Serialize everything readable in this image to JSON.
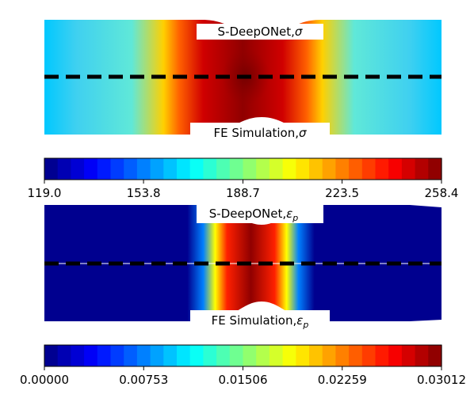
{
  "chart_data": [
    {
      "type": "heatmap",
      "panel": "stress",
      "top_label": "S-DeepONet,σ",
      "bottom_label": "FE Simulation,σ",
      "colormap": "jet",
      "colorbar": {
        "range": [
          119.0,
          258.4
        ],
        "ticks": [
          119.0,
          153.8,
          188.7,
          223.5,
          258.4
        ],
        "tick_labels": [
          "119.0",
          "153.8",
          "188.7",
          "223.5",
          "258.4"
        ]
      }
    },
    {
      "type": "heatmap",
      "panel": "plastic-strain",
      "top_label": "S-DeepONet,εp",
      "bottom_label": "FE Simulation,εp",
      "colormap": "jet",
      "colorbar": {
        "range": [
          0.0,
          0.03012
        ],
        "ticks": [
          0.0,
          0.00753,
          0.01506,
          0.02259,
          0.03012
        ],
        "tick_labels": [
          "0.00000",
          "0.00753",
          "0.01506",
          "0.02259",
          "0.03012"
        ]
      }
    }
  ]
}
